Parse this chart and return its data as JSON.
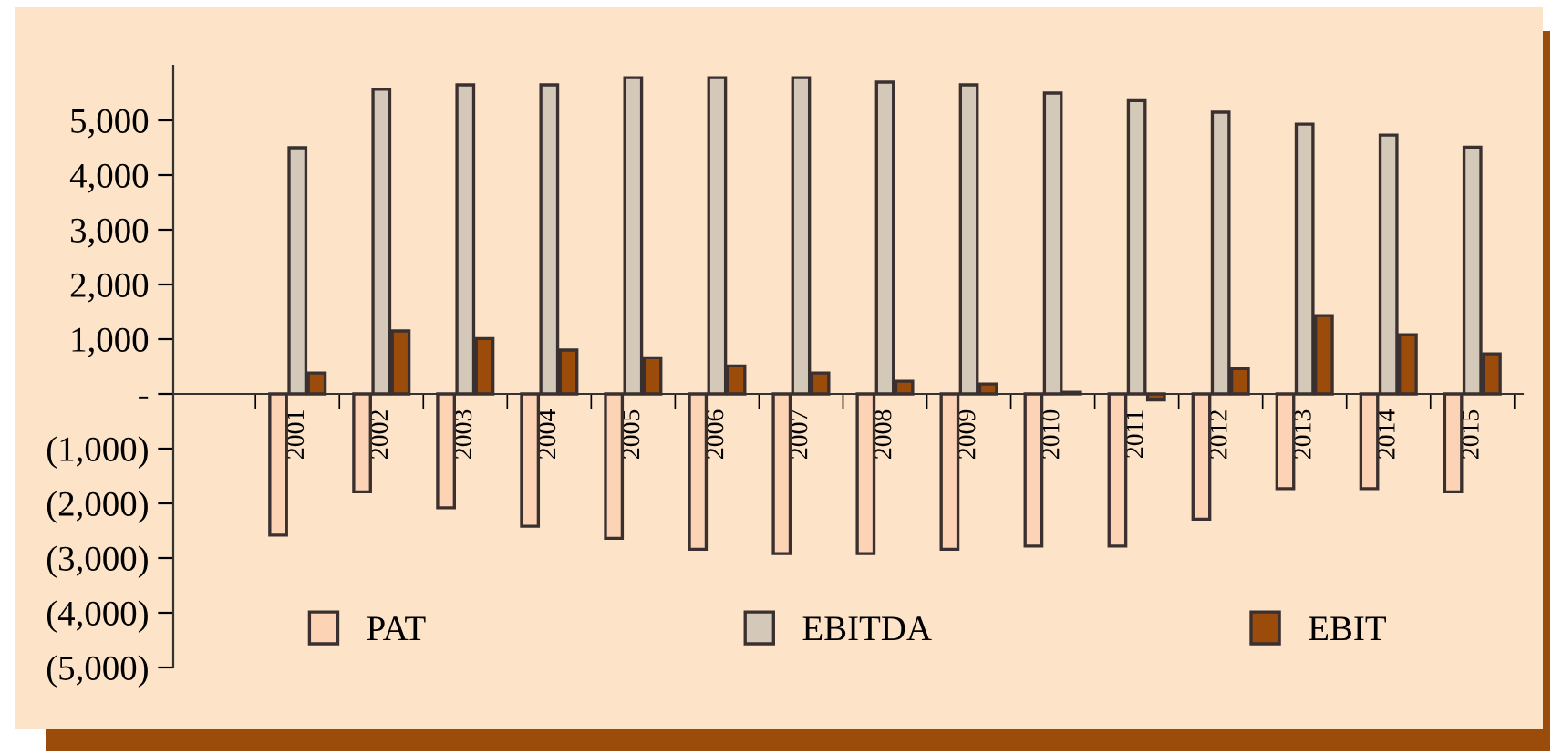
{
  "chart_data": {
    "type": "bar",
    "categories": [
      "2001",
      "2002",
      "2003",
      "2004",
      "2005",
      "2006",
      "2007",
      "2008",
      "2009",
      "2010",
      "2011",
      "2012",
      "2013",
      "2014",
      "2015"
    ],
    "series": [
      {
        "name": "PAT",
        "color": "#fcd3b4",
        "values": [
          -2580,
          -1790,
          -2080,
          -2420,
          -2640,
          -2840,
          -2920,
          -2920,
          -2840,
          -2780,
          -2780,
          -2290,
          -1730,
          -1730,
          -1790
        ]
      },
      {
        "name": "EBITDA",
        "color": "#d4c8b8",
        "values": [
          4500,
          5570,
          5650,
          5650,
          5780,
          5780,
          5780,
          5700,
          5650,
          5500,
          5360,
          5150,
          4930,
          4730,
          4510
        ]
      },
      {
        "name": "EBIT",
        "color": "#9c4c0a",
        "values": [
          380,
          1150,
          1010,
          800,
          660,
          510,
          380,
          230,
          180,
          30,
          -110,
          460,
          1430,
          1080,
          730
        ]
      }
    ],
    "ylim": [
      -5000,
      6000
    ],
    "yticks": [
      {
        "value": -5000,
        "label": "(5,000)"
      },
      {
        "value": -4000,
        "label": "(4,000)"
      },
      {
        "value": -3000,
        "label": "(3,000)"
      },
      {
        "value": -2000,
        "label": "(2,000)"
      },
      {
        "value": -1000,
        "label": "(1,000)"
      },
      {
        "value": 0,
        "label": "-"
      },
      {
        "value": 1000,
        "label": "1,000"
      },
      {
        "value": 2000,
        "label": "2,000"
      },
      {
        "value": 3000,
        "label": "3,000"
      },
      {
        "value": 4000,
        "label": "4,000"
      },
      {
        "value": 5000,
        "label": "5,000"
      }
    ],
    "grid": false,
    "legend": "bottom"
  }
}
